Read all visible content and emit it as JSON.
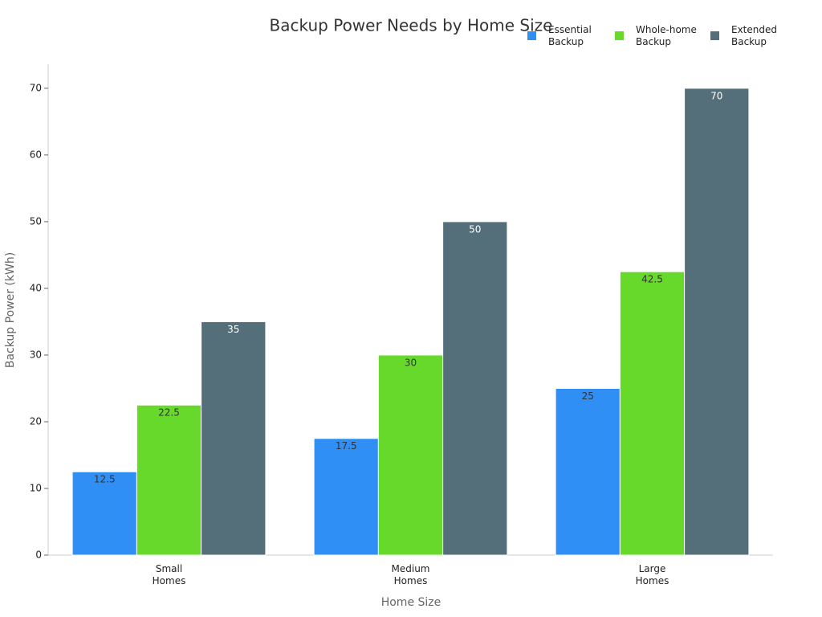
{
  "chart_data": {
    "type": "bar",
    "title": "Backup Power Needs by Home Size",
    "x_label": "Home Size",
    "y_label": "Backup Power (kWh)",
    "categories": [
      "Small Homes",
      "Medium Homes",
      "Large Homes"
    ],
    "series": [
      {
        "name": "Essential Backup",
        "color": "#2f8ff5",
        "values": [
          12.5,
          17.5,
          25
        ]
      },
      {
        "name": "Whole-home Backup",
        "color": "#66d92a",
        "values": [
          22.5,
          30,
          42.5
        ]
      },
      {
        "name": "Extended Backup",
        "color": "#546e7a",
        "values": [
          35,
          50,
          70
        ]
      }
    ],
    "ylim": [
      0,
      73.6
    ],
    "yticks": [
      0,
      10,
      20,
      30,
      40,
      50,
      60,
      70
    ],
    "legend": "top-right"
  }
}
